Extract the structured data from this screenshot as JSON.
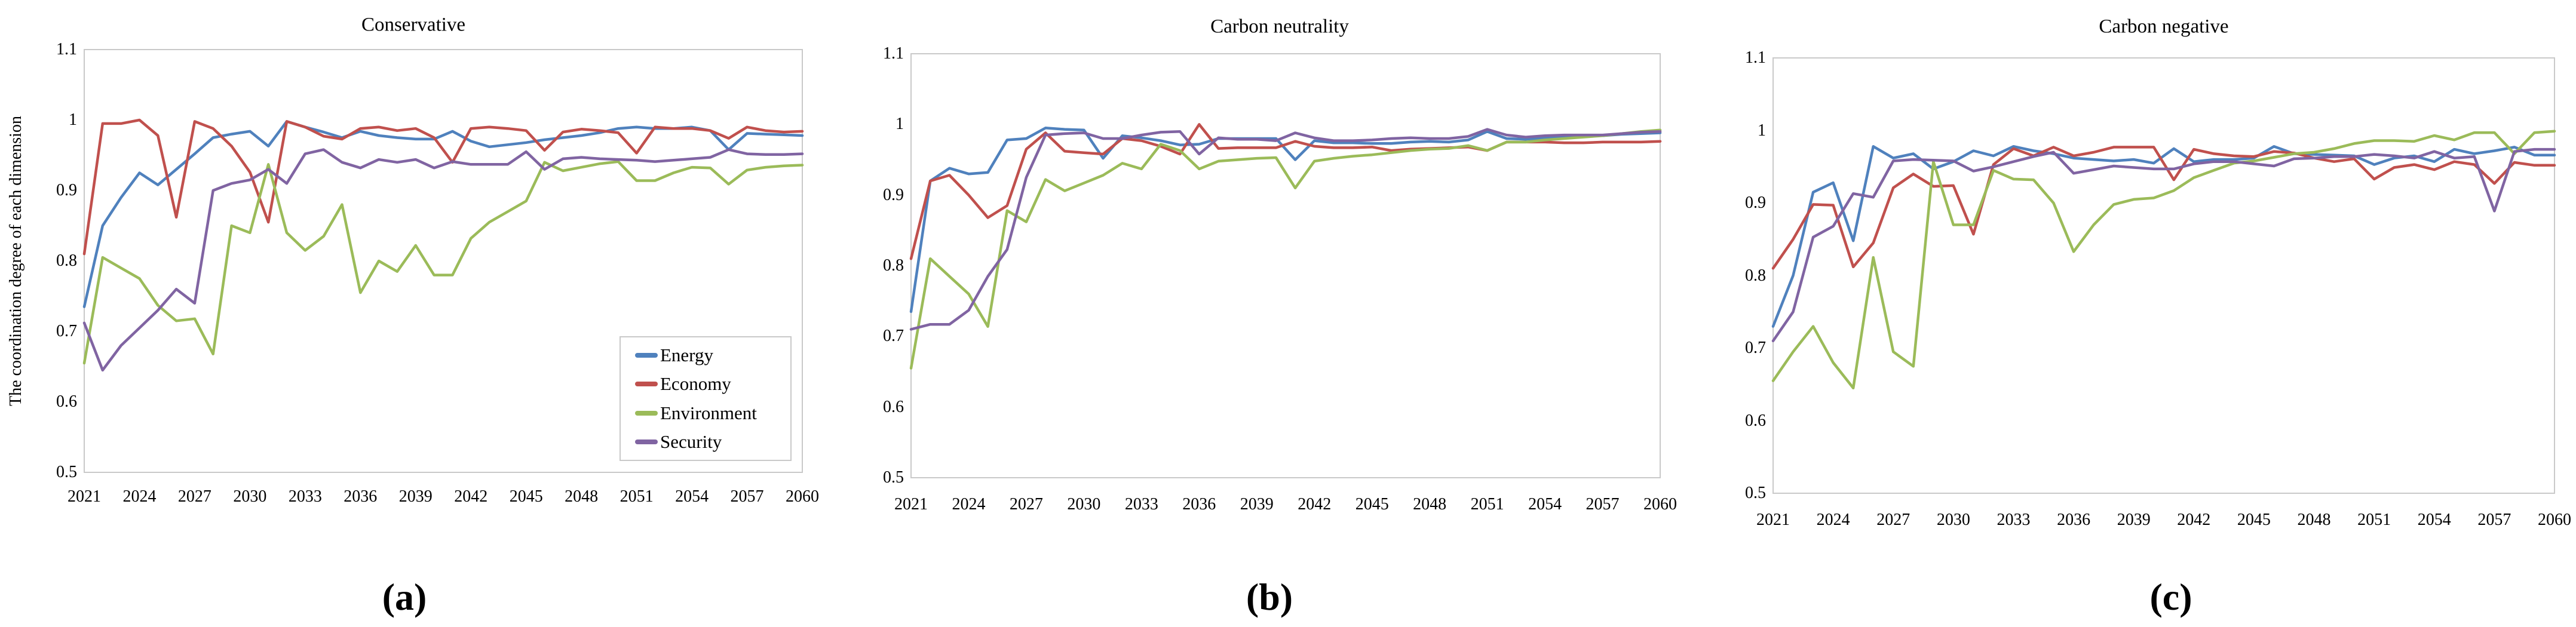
{
  "figure": {
    "background": "#ffffff",
    "y_axis_title": "The coordination degree of each dimension",
    "axis_color": "#c9c9c9",
    "ylim": [
      0.5,
      1.1
    ],
    "ytick_labels": [
      "1.1",
      "1",
      "0.9",
      "0.8",
      "0.7",
      "0.6",
      "0.5"
    ],
    "ytick_values": [
      1.1,
      1.0,
      0.9,
      0.8,
      0.7,
      0.6,
      0.5
    ],
    "xtick_years": [
      2021,
      2024,
      2027,
      2030,
      2033,
      2036,
      2039,
      2042,
      2045,
      2048,
      2051,
      2054,
      2057,
      2060
    ]
  },
  "legend": {
    "position": "inside-right-bottom-of-chart-a",
    "items": [
      {
        "label": "Energy",
        "color": "#4F81BD"
      },
      {
        "label": "Economy",
        "color": "#C0504D"
      },
      {
        "label": "Environment",
        "color": "#9BBB59"
      },
      {
        "label": "Security",
        "color": "#8064A2"
      }
    ]
  },
  "captions": {
    "a": "(a)",
    "b": "(b)",
    "c": "(c)"
  },
  "chart_data": [
    {
      "type": "line",
      "title": "Conservative",
      "caption": "(a)",
      "xlabel": "",
      "ylabel": "The coordination degree of each dimension",
      "ylim": [
        0.5,
        1.1
      ],
      "grid": false,
      "legend_position": "inside lower right",
      "x": [
        2021,
        2022,
        2023,
        2024,
        2025,
        2026,
        2027,
        2028,
        2029,
        2030,
        2031,
        2032,
        2033,
        2034,
        2035,
        2036,
        2037,
        2038,
        2039,
        2040,
        2041,
        2042,
        2043,
        2044,
        2045,
        2046,
        2047,
        2048,
        2049,
        2050,
        2051,
        2052,
        2053,
        2054,
        2055,
        2056,
        2057,
        2058,
        2059,
        2060
      ],
      "series": [
        {
          "name": "Energy",
          "color": "#4F81BD",
          "values": [
            0.735,
            0.85,
            0.89,
            0.925,
            0.908,
            0.93,
            0.952,
            0.975,
            0.98,
            0.984,
            0.963,
            0.998,
            0.99,
            0.983,
            0.975,
            0.984,
            0.978,
            0.975,
            0.973,
            0.973,
            0.984,
            0.97,
            0.962,
            0.965,
            0.968,
            0.972,
            0.975,
            0.978,
            0.982,
            0.988,
            0.99,
            0.988,
            0.988,
            0.99,
            0.985,
            0.958,
            0.981,
            0.98,
            0.979,
            0.978
          ]
        },
        {
          "name": "Economy",
          "color": "#C0504D",
          "values": [
            0.81,
            0.995,
            0.995,
            1.0,
            0.978,
            0.862,
            0.998,
            0.988,
            0.963,
            0.926,
            0.855,
            0.998,
            0.99,
            0.977,
            0.973,
            0.988,
            0.99,
            0.985,
            0.988,
            0.975,
            0.94,
            0.988,
            0.99,
            0.988,
            0.985,
            0.957,
            0.983,
            0.987,
            0.985,
            0.982,
            0.953,
            0.99,
            0.988,
            0.988,
            0.985,
            0.974,
            0.99,
            0.985,
            0.983,
            0.984
          ]
        },
        {
          "name": "Environment",
          "color": "#9BBB59",
          "values": [
            0.655,
            0.805,
            0.79,
            0.775,
            0.737,
            0.715,
            0.718,
            0.668,
            0.85,
            0.84,
            0.937,
            0.84,
            0.815,
            0.835,
            0.88,
            0.755,
            0.8,
            0.785,
            0.822,
            0.78,
            0.78,
            0.832,
            0.855,
            0.87,
            0.885,
            0.94,
            0.928,
            0.933,
            0.938,
            0.941,
            0.914,
            0.914,
            0.925,
            0.933,
            0.932,
            0.909,
            0.929,
            0.933,
            0.935,
            0.936
          ]
        },
        {
          "name": "Security",
          "color": "#8064A2",
          "values": [
            0.712,
            0.645,
            0.68,
            0.705,
            0.73,
            0.76,
            0.74,
            0.9,
            0.91,
            0.915,
            0.93,
            0.91,
            0.952,
            0.958,
            0.94,
            0.932,
            0.944,
            0.94,
            0.944,
            0.932,
            0.941,
            0.937,
            0.937,
            0.937,
            0.955,
            0.93,
            0.945,
            0.947,
            0.945,
            0.944,
            0.943,
            0.941,
            0.943,
            0.945,
            0.947,
            0.958,
            0.952,
            0.951,
            0.951,
            0.952
          ]
        }
      ]
    },
    {
      "type": "line",
      "title": "Carbon neutrality",
      "caption": "(b)",
      "xlabel": "",
      "ylabel": "",
      "ylim": [
        0.5,
        1.1
      ],
      "grid": false,
      "legend_position": "none",
      "x": [
        2021,
        2022,
        2023,
        2024,
        2025,
        2026,
        2027,
        2028,
        2029,
        2030,
        2031,
        2032,
        2033,
        2034,
        2035,
        2036,
        2037,
        2038,
        2039,
        2040,
        2041,
        2042,
        2043,
        2044,
        2045,
        2046,
        2047,
        2048,
        2049,
        2050,
        2051,
        2052,
        2053,
        2054,
        2055,
        2056,
        2057,
        2058,
        2059,
        2060
      ],
      "series": [
        {
          "name": "Energy",
          "color": "#4F81BD",
          "values": [
            0.735,
            0.92,
            0.938,
            0.93,
            0.932,
            0.978,
            0.98,
            0.995,
            0.993,
            0.992,
            0.952,
            0.984,
            0.981,
            0.977,
            0.971,
            0.972,
            0.98,
            0.98,
            0.98,
            0.98,
            0.95,
            0.977,
            0.974,
            0.974,
            0.973,
            0.973,
            0.975,
            0.976,
            0.975,
            0.978,
            0.99,
            0.98,
            0.979,
            0.981,
            0.983,
            0.984,
            0.984,
            0.986,
            0.987,
            0.988
          ]
        },
        {
          "name": "Economy",
          "color": "#C0504D",
          "values": [
            0.81,
            0.92,
            0.928,
            0.9,
            0.868,
            0.885,
            0.965,
            0.988,
            0.962,
            0.96,
            0.958,
            0.98,
            0.977,
            0.969,
            0.958,
            1.0,
            0.966,
            0.967,
            0.967,
            0.967,
            0.976,
            0.969,
            0.967,
            0.967,
            0.968,
            0.963,
            0.965,
            0.966,
            0.967,
            0.968,
            0.963,
            0.975,
            0.975,
            0.975,
            0.974,
            0.974,
            0.975,
            0.975,
            0.975,
            0.976
          ]
        },
        {
          "name": "Environment",
          "color": "#9BBB59",
          "values": [
            0.655,
            0.81,
            0.785,
            0.76,
            0.714,
            0.878,
            0.862,
            0.922,
            0.906,
            0.917,
            0.928,
            0.945,
            0.937,
            0.972,
            0.963,
            0.937,
            0.948,
            0.95,
            0.952,
            0.953,
            0.91,
            0.948,
            0.952,
            0.955,
            0.957,
            0.96,
            0.963,
            0.965,
            0.966,
            0.97,
            0.963,
            0.975,
            0.975,
            0.978,
            0.98,
            0.982,
            0.984,
            0.987,
            0.99,
            0.992
          ]
        },
        {
          "name": "Security",
          "color": "#8064A2",
          "values": [
            0.71,
            0.717,
            0.717,
            0.737,
            0.785,
            0.823,
            0.925,
            0.985,
            0.987,
            0.988,
            0.98,
            0.98,
            0.985,
            0.989,
            0.99,
            0.958,
            0.981,
            0.979,
            0.979,
            0.977,
            0.988,
            0.981,
            0.977,
            0.977,
            0.978,
            0.98,
            0.981,
            0.98,
            0.98,
            0.983,
            0.993,
            0.985,
            0.982,
            0.984,
            0.985,
            0.985,
            0.985,
            0.987,
            0.989,
            0.99
          ]
        }
      ]
    },
    {
      "type": "line",
      "title": "Carbon negative",
      "caption": "(c)",
      "xlabel": "",
      "ylabel": "",
      "ylim": [
        0.5,
        1.1
      ],
      "grid": false,
      "legend_position": "none",
      "x": [
        2021,
        2022,
        2023,
        2024,
        2025,
        2026,
        2027,
        2028,
        2029,
        2030,
        2031,
        2032,
        2033,
        2034,
        2035,
        2036,
        2037,
        2038,
        2039,
        2040,
        2041,
        2042,
        2043,
        2044,
        2045,
        2046,
        2047,
        2048,
        2049,
        2050,
        2051,
        2052,
        2053,
        2054,
        2055,
        2056,
        2057,
        2058,
        2059,
        2060
      ],
      "series": [
        {
          "name": "Energy",
          "color": "#4F81BD",
          "values": [
            0.73,
            0.8,
            0.915,
            0.928,
            0.848,
            0.978,
            0.962,
            0.968,
            0.947,
            0.957,
            0.972,
            0.965,
            0.978,
            0.972,
            0.968,
            0.962,
            0.96,
            0.958,
            0.96,
            0.955,
            0.975,
            0.957,
            0.96,
            0.96,
            0.962,
            0.978,
            0.968,
            0.967,
            0.966,
            0.965,
            0.953,
            0.962,
            0.965,
            0.957,
            0.974,
            0.968,
            0.972,
            0.977,
            0.966,
            0.966
          ]
        },
        {
          "name": "Economy",
          "color": "#C0504D",
          "values": [
            0.81,
            0.85,
            0.898,
            0.897,
            0.812,
            0.845,
            0.921,
            0.94,
            0.923,
            0.924,
            0.857,
            0.953,
            0.975,
            0.965,
            0.977,
            0.965,
            0.97,
            0.977,
            0.977,
            0.977,
            0.932,
            0.974,
            0.968,
            0.965,
            0.964,
            0.971,
            0.969,
            0.962,
            0.957,
            0.961,
            0.933,
            0.949,
            0.953,
            0.946,
            0.957,
            0.953,
            0.927,
            0.956,
            0.952,
            0.952
          ]
        },
        {
          "name": "Environment",
          "color": "#9BBB59",
          "values": [
            0.655,
            0.695,
            0.73,
            0.68,
            0.645,
            0.825,
            0.695,
            0.675,
            0.957,
            0.87,
            0.87,
            0.945,
            0.933,
            0.932,
            0.9,
            0.833,
            0.87,
            0.898,
            0.905,
            0.907,
            0.917,
            0.935,
            0.945,
            0.955,
            0.958,
            0.963,
            0.968,
            0.97,
            0.975,
            0.982,
            0.986,
            0.986,
            0.985,
            0.993,
            0.987,
            0.997,
            0.997,
            0.968,
            0.997,
            0.999
          ]
        },
        {
          "name": "Security",
          "color": "#8064A2",
          "values": [
            0.71,
            0.75,
            0.853,
            0.868,
            0.913,
            0.908,
            0.958,
            0.96,
            0.959,
            0.958,
            0.944,
            0.95,
            0.957,
            0.964,
            0.97,
            0.941,
            0.946,
            0.951,
            0.949,
            0.947,
            0.947,
            0.954,
            0.957,
            0.957,
            0.954,
            0.951,
            0.961,
            0.962,
            0.964,
            0.964,
            0.967,
            0.965,
            0.962,
            0.971,
            0.962,
            0.964,
            0.889,
            0.971,
            0.974,
            0.974
          ]
        }
      ]
    }
  ]
}
